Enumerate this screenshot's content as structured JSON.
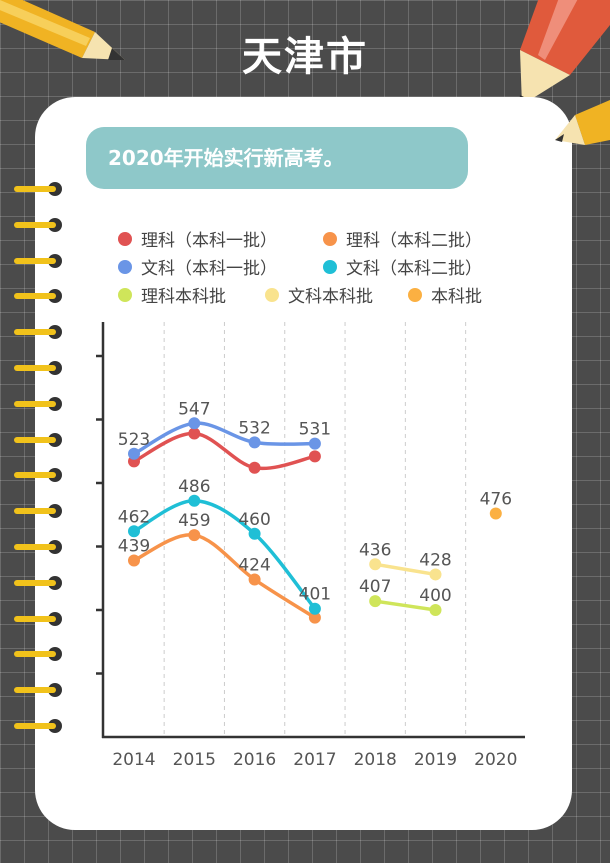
{
  "header": {
    "title": "天津市"
  },
  "banner": {
    "text": "2020年开始实行新高考。"
  },
  "chart_data": {
    "type": "line",
    "title": "天津市",
    "categories": [
      "2014",
      "2015",
      "2016",
      "2017",
      "2018",
      "2019",
      "2020"
    ],
    "ylim": [
      300,
      600
    ],
    "yticks": [
      350,
      400,
      450,
      500,
      550,
      600
    ],
    "grid": "vertical dashed",
    "legend_position": "top",
    "series": [
      {
        "name": "理科（本科一批）",
        "color": "#e05252",
        "values": [
          517,
          539,
          512,
          521,
          null,
          null,
          null
        ],
        "show_labels": false
      },
      {
        "name": "理科（本科二批）",
        "color": "#f7934a",
        "values": [
          439,
          459,
          424,
          394,
          null,
          null,
          null
        ],
        "show_labels": [
          true,
          true,
          true,
          false
        ]
      },
      {
        "name": "文科（本科一批）",
        "color": "#6a95e6",
        "values": [
          523,
          547,
          532,
          531,
          null,
          null,
          null
        ],
        "show_labels": true
      },
      {
        "name": "文科（本科二批）",
        "color": "#1fbfd6",
        "values": [
          462,
          486,
          460,
          401,
          null,
          null,
          null
        ],
        "show_labels": true
      },
      {
        "name": "理科本科批",
        "color": "#cfe55a",
        "values": [
          null,
          null,
          null,
          null,
          407,
          400,
          null
        ],
        "show_labels": true
      },
      {
        "name": "文科本科批",
        "color": "#f9e38e",
        "values": [
          null,
          null,
          null,
          null,
          436,
          428,
          null
        ],
        "show_labels": true
      },
      {
        "name": "本科批",
        "color": "#fbb042",
        "values": [
          null,
          null,
          null,
          null,
          null,
          null,
          476
        ],
        "show_labels": true
      }
    ]
  }
}
